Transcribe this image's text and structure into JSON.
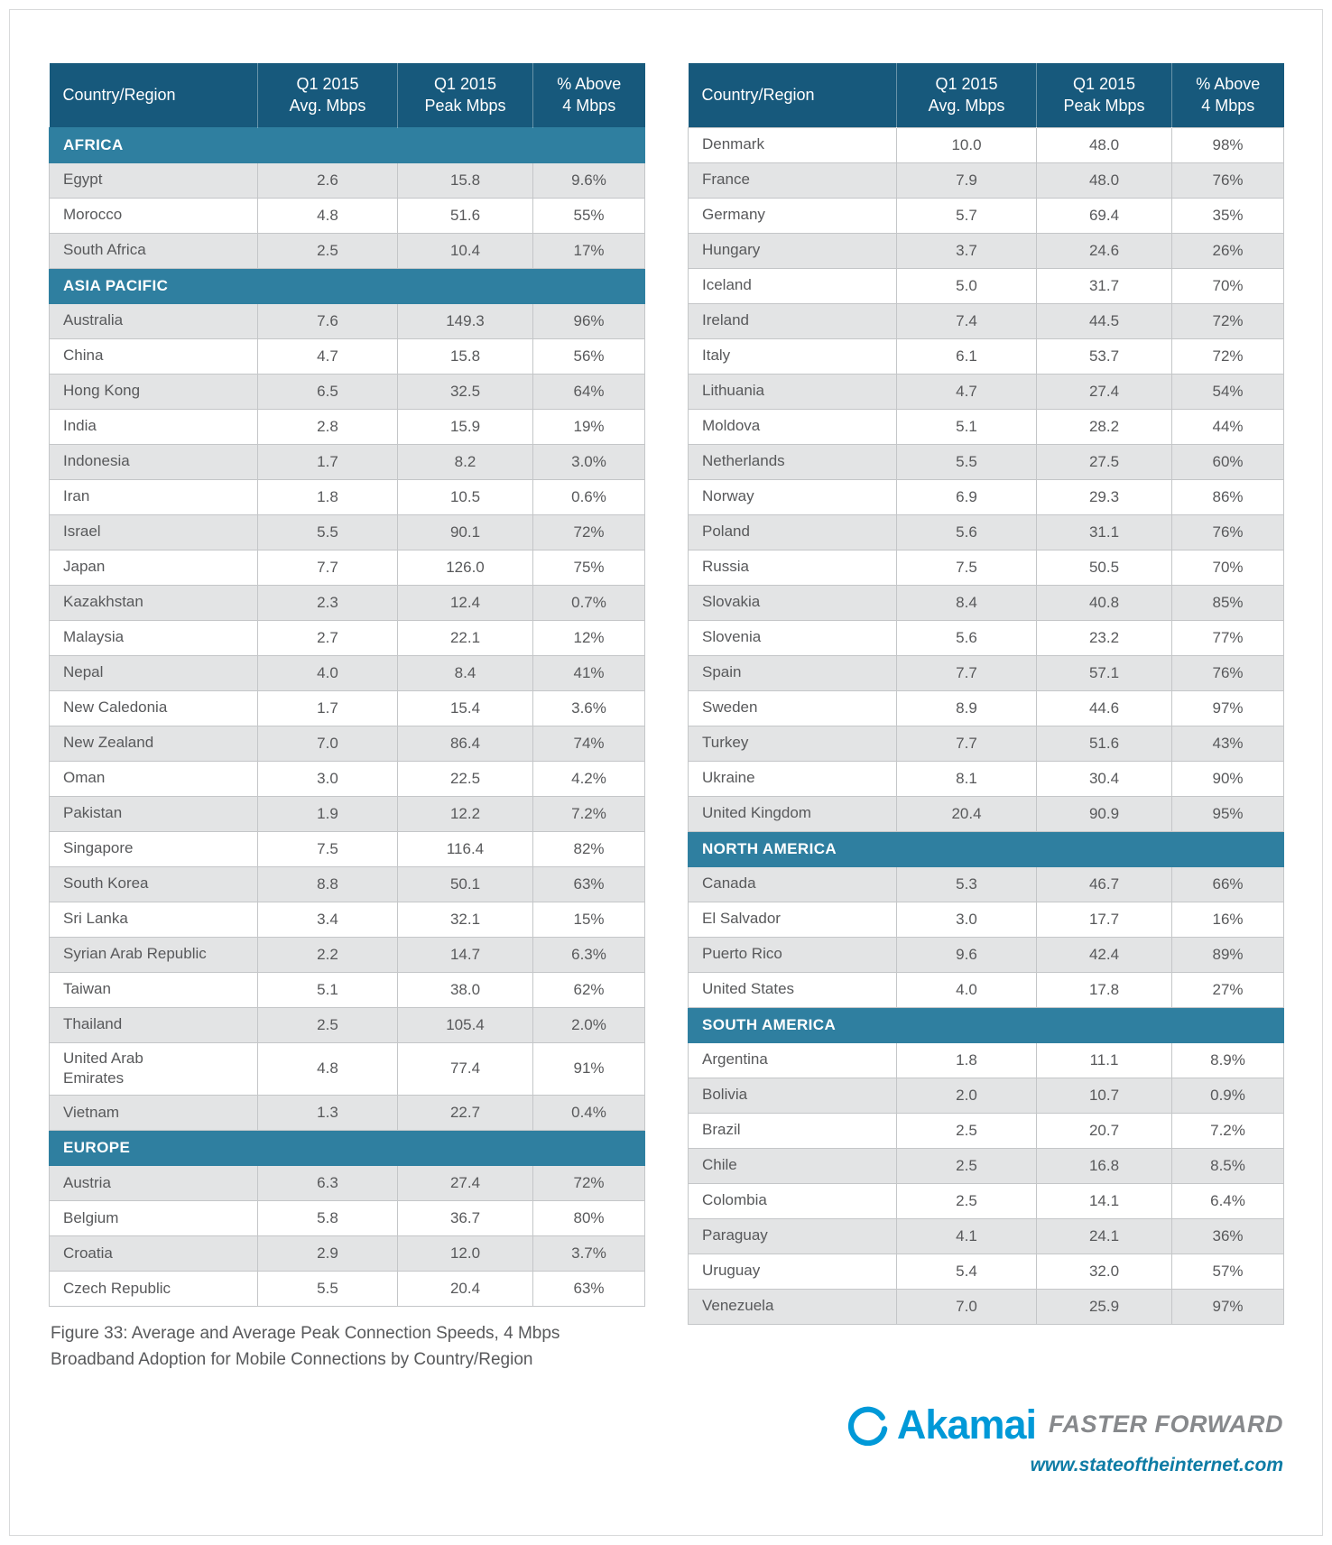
{
  "colors": {
    "header_bg": "#17597C",
    "region_bg": "#2F7FA0",
    "shaded_row": "#E3E4E5",
    "cell_text": "#58595B",
    "brand_blue": "#0099D8",
    "tagline_gray": "#87898C",
    "url_blue": "#0E7CA5"
  },
  "caption": "Figure 33: Average and Average Peak Connection Speeds, 4 Mbps\nBroadband Adoption for Mobile Connections by Country/Region",
  "footer": {
    "brand": "Akamai",
    "tagline": "FASTER FORWARD",
    "url": "www.stateoftheinternet.com"
  },
  "left_table": {
    "columns": [
      "Country/Region",
      "Q1 2015\nAvg. Mbps",
      "Q1 2015\nPeak Mbps",
      "% Above\n4 Mbps"
    ],
    "rows": [
      {
        "type": "region",
        "label": "AFRICA"
      },
      {
        "type": "country",
        "country": "Egypt",
        "avg": "2.6",
        "peak": "15.8",
        "above": "9.6%"
      },
      {
        "type": "country",
        "country": "Morocco",
        "avg": "4.8",
        "peak": "51.6",
        "above": "55%"
      },
      {
        "type": "country",
        "country": "South Africa",
        "avg": "2.5",
        "peak": "10.4",
        "above": "17%"
      },
      {
        "type": "region",
        "label": "ASIA PACIFIC"
      },
      {
        "type": "country",
        "country": "Australia",
        "avg": "7.6",
        "peak": "149.3",
        "above": "96%"
      },
      {
        "type": "country",
        "country": "China",
        "avg": "4.7",
        "peak": "15.8",
        "above": "56%"
      },
      {
        "type": "country",
        "country": "Hong Kong",
        "avg": "6.5",
        "peak": "32.5",
        "above": "64%"
      },
      {
        "type": "country",
        "country": "India",
        "avg": "2.8",
        "peak": "15.9",
        "above": "19%"
      },
      {
        "type": "country",
        "country": "Indonesia",
        "avg": "1.7",
        "peak": "8.2",
        "above": "3.0%"
      },
      {
        "type": "country",
        "country": "Iran",
        "avg": "1.8",
        "peak": "10.5",
        "above": "0.6%"
      },
      {
        "type": "country",
        "country": "Israel",
        "avg": "5.5",
        "peak": "90.1",
        "above": "72%"
      },
      {
        "type": "country",
        "country": "Japan",
        "avg": "7.7",
        "peak": "126.0",
        "above": "75%"
      },
      {
        "type": "country",
        "country": "Kazakhstan",
        "avg": "2.3",
        "peak": "12.4",
        "above": "0.7%"
      },
      {
        "type": "country",
        "country": "Malaysia",
        "avg": "2.7",
        "peak": "22.1",
        "above": "12%"
      },
      {
        "type": "country",
        "country": "Nepal",
        "avg": "4.0",
        "peak": "8.4",
        "above": "41%"
      },
      {
        "type": "country",
        "country": "New Caledonia",
        "avg": "1.7",
        "peak": "15.4",
        "above": "3.6%"
      },
      {
        "type": "country",
        "country": "New Zealand",
        "avg": "7.0",
        "peak": "86.4",
        "above": "74%"
      },
      {
        "type": "country",
        "country": "Oman",
        "avg": "3.0",
        "peak": "22.5",
        "above": "4.2%"
      },
      {
        "type": "country",
        "country": "Pakistan",
        "avg": "1.9",
        "peak": "12.2",
        "above": "7.2%"
      },
      {
        "type": "country",
        "country": "Singapore",
        "avg": "7.5",
        "peak": "116.4",
        "above": "82%"
      },
      {
        "type": "country",
        "country": "South Korea",
        "avg": "8.8",
        "peak": "50.1",
        "above": "63%"
      },
      {
        "type": "country",
        "country": "Sri Lanka",
        "avg": "3.4",
        "peak": "32.1",
        "above": "15%"
      },
      {
        "type": "country",
        "country": "Syrian Arab Republic",
        "avg": "2.2",
        "peak": "14.7",
        "above": "6.3%"
      },
      {
        "type": "country",
        "country": "Taiwan",
        "avg": "5.1",
        "peak": "38.0",
        "above": "62%"
      },
      {
        "type": "country",
        "country": "Thailand",
        "avg": "2.5",
        "peak": "105.4",
        "above": "2.0%"
      },
      {
        "type": "country",
        "country": "United Arab\nEmirates",
        "avg": "4.8",
        "peak": "77.4",
        "above": "91%"
      },
      {
        "type": "country",
        "country": "Vietnam",
        "avg": "1.3",
        "peak": "22.7",
        "above": "0.4%"
      },
      {
        "type": "region",
        "label": "EUROPE"
      },
      {
        "type": "country",
        "country": "Austria",
        "avg": "6.3",
        "peak": "27.4",
        "above": "72%"
      },
      {
        "type": "country",
        "country": "Belgium",
        "avg": "5.8",
        "peak": "36.7",
        "above": "80%"
      },
      {
        "type": "country",
        "country": "Croatia",
        "avg": "2.9",
        "peak": "12.0",
        "above": "3.7%"
      },
      {
        "type": "country",
        "country": "Czech Republic",
        "avg": "5.5",
        "peak": "20.4",
        "above": "63%"
      }
    ]
  },
  "right_table": {
    "columns": [
      "Country/Region",
      "Q1 2015\nAvg. Mbps",
      "Q1 2015\nPeak Mbps",
      "% Above\n4 Mbps"
    ],
    "rows": [
      {
        "type": "country",
        "country": "Denmark",
        "avg": "10.0",
        "peak": "48.0",
        "above": "98%"
      },
      {
        "type": "country",
        "country": "France",
        "avg": "7.9",
        "peak": "48.0",
        "above": "76%"
      },
      {
        "type": "country",
        "country": "Germany",
        "avg": "5.7",
        "peak": "69.4",
        "above": "35%"
      },
      {
        "type": "country",
        "country": "Hungary",
        "avg": "3.7",
        "peak": "24.6",
        "above": "26%"
      },
      {
        "type": "country",
        "country": "Iceland",
        "avg": "5.0",
        "peak": "31.7",
        "above": "70%"
      },
      {
        "type": "country",
        "country": "Ireland",
        "avg": "7.4",
        "peak": "44.5",
        "above": "72%"
      },
      {
        "type": "country",
        "country": "Italy",
        "avg": "6.1",
        "peak": "53.7",
        "above": "72%"
      },
      {
        "type": "country",
        "country": "Lithuania",
        "avg": "4.7",
        "peak": "27.4",
        "above": "54%"
      },
      {
        "type": "country",
        "country": "Moldova",
        "avg": "5.1",
        "peak": "28.2",
        "above": "44%"
      },
      {
        "type": "country",
        "country": "Netherlands",
        "avg": "5.5",
        "peak": "27.5",
        "above": "60%"
      },
      {
        "type": "country",
        "country": "Norway",
        "avg": "6.9",
        "peak": "29.3",
        "above": "86%"
      },
      {
        "type": "country",
        "country": "Poland",
        "avg": "5.6",
        "peak": "31.1",
        "above": "76%"
      },
      {
        "type": "country",
        "country": "Russia",
        "avg": "7.5",
        "peak": "50.5",
        "above": "70%"
      },
      {
        "type": "country",
        "country": "Slovakia",
        "avg": "8.4",
        "peak": "40.8",
        "above": "85%"
      },
      {
        "type": "country",
        "country": "Slovenia",
        "avg": "5.6",
        "peak": "23.2",
        "above": "77%"
      },
      {
        "type": "country",
        "country": "Spain",
        "avg": "7.7",
        "peak": "57.1",
        "above": "76%"
      },
      {
        "type": "country",
        "country": "Sweden",
        "avg": "8.9",
        "peak": "44.6",
        "above": "97%"
      },
      {
        "type": "country",
        "country": "Turkey",
        "avg": "7.7",
        "peak": "51.6",
        "above": "43%"
      },
      {
        "type": "country",
        "country": "Ukraine",
        "avg": "8.1",
        "peak": "30.4",
        "above": "90%"
      },
      {
        "type": "country",
        "country": "United Kingdom",
        "avg": "20.4",
        "peak": "90.9",
        "above": "95%"
      },
      {
        "type": "region",
        "label": "NORTH AMERICA"
      },
      {
        "type": "country",
        "country": "Canada",
        "avg": "5.3",
        "peak": "46.7",
        "above": "66%"
      },
      {
        "type": "country",
        "country": "El Salvador",
        "avg": "3.0",
        "peak": "17.7",
        "above": "16%"
      },
      {
        "type": "country",
        "country": "Puerto Rico",
        "avg": "9.6",
        "peak": "42.4",
        "above": "89%"
      },
      {
        "type": "country",
        "country": "United States",
        "avg": "4.0",
        "peak": "17.8",
        "above": "27%"
      },
      {
        "type": "region",
        "label": "SOUTH AMERICA"
      },
      {
        "type": "country",
        "country": "Argentina",
        "avg": "1.8",
        "peak": "11.1",
        "above": "8.9%"
      },
      {
        "type": "country",
        "country": "Bolivia",
        "avg": "2.0",
        "peak": "10.7",
        "above": "0.9%"
      },
      {
        "type": "country",
        "country": "Brazil",
        "avg": "2.5",
        "peak": "20.7",
        "above": "7.2%"
      },
      {
        "type": "country",
        "country": "Chile",
        "avg": "2.5",
        "peak": "16.8",
        "above": "8.5%"
      },
      {
        "type": "country",
        "country": "Colombia",
        "avg": "2.5",
        "peak": "14.1",
        "above": "6.4%"
      },
      {
        "type": "country",
        "country": "Paraguay",
        "avg": "4.1",
        "peak": "24.1",
        "above": "36%"
      },
      {
        "type": "country",
        "country": "Uruguay",
        "avg": "5.4",
        "peak": "32.0",
        "above": "57%"
      },
      {
        "type": "country",
        "country": "Venezuela",
        "avg": "7.0",
        "peak": "25.9",
        "above": "97%"
      }
    ]
  }
}
